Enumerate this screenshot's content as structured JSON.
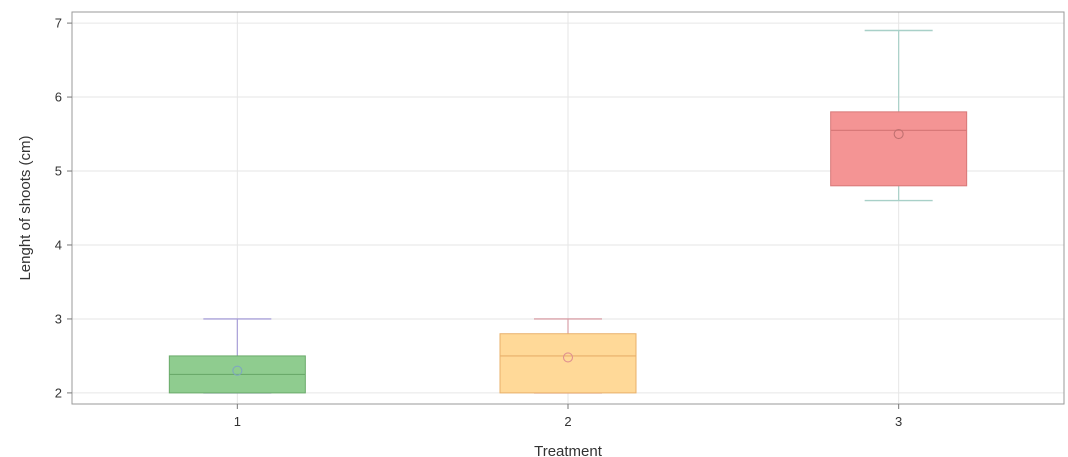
{
  "chart_data": {
    "type": "box",
    "xlabel": "Treatment",
    "ylabel": "Lenght of shoots (cm)",
    "ylim": [
      1.85,
      7.15
    ],
    "yticks": [
      2,
      3,
      4,
      5,
      6,
      7
    ],
    "grid": true,
    "categories": [
      "1",
      "2",
      "3"
    ],
    "boxes": [
      {
        "category": "1",
        "min": 2.0,
        "q1": 2.0,
        "median": 2.25,
        "q3": 2.5,
        "max": 3.0,
        "mean": 2.3,
        "color": "#8fcc8f",
        "stroke": "#6aaa6a",
        "whisker": "#a9a0d8",
        "mean_color": "#7fa7c0"
      },
      {
        "category": "2",
        "min": 2.0,
        "q1": 2.0,
        "median": 2.5,
        "q3": 2.8,
        "max": 3.0,
        "mean": 2.48,
        "color": "#ffd998",
        "stroke": "#e8b06a",
        "whisker": "#d8a0a8",
        "mean_color": "#e09090"
      },
      {
        "category": "3",
        "min": 4.6,
        "q1": 4.8,
        "median": 5.55,
        "q3": 5.8,
        "max": 6.9,
        "mean": 5.5,
        "color": "#f49494",
        "stroke": "#d87878",
        "whisker": "#a8d0c8",
        "mean_color": "#c07070"
      }
    ]
  }
}
